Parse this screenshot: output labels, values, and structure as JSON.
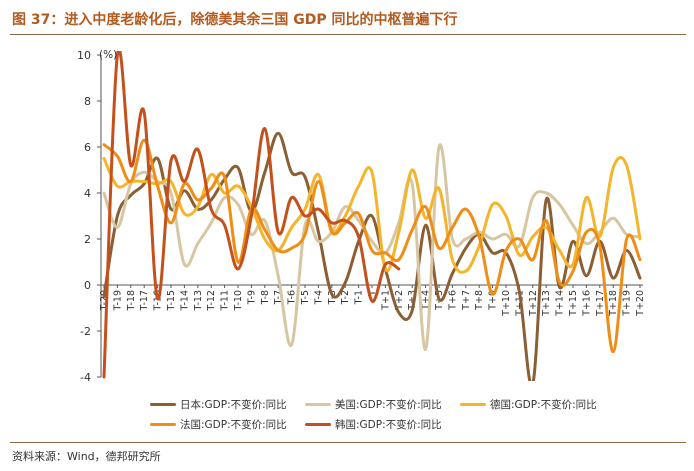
{
  "figure": {
    "title": "图 37：进入中度老龄化后，除德美其余三国 GDP 同比的中枢普遍下行",
    "source": "资料来源：Wind，德邦研究所"
  },
  "chart_data": {
    "type": "line",
    "ylabel": "(%)",
    "ylim": [
      -4,
      10
    ],
    "yticks": [
      -4,
      -2,
      0,
      2,
      4,
      6,
      8,
      10
    ],
    "grid": false,
    "legend_position": "bottom",
    "categories": [
      "T-20",
      "T-19",
      "T-18",
      "T-17",
      "T-16",
      "T-15",
      "T-14",
      "T-13",
      "T-12",
      "T-11",
      "T-10",
      "T-9",
      "T-8",
      "T-7",
      "T-6",
      "T-5",
      "T-4",
      "T-3",
      "T-2",
      "T-1",
      "T",
      "T+1",
      "T+2",
      "T+3",
      "T+4",
      "T+5",
      "T+6",
      "T+7",
      "T+8",
      "T+9",
      "T+10",
      "T+11",
      "T+12",
      "T+13",
      "T+14",
      "T+15",
      "T+16",
      "T+17",
      "T+18",
      "T+19",
      "T+20"
    ],
    "series": [
      {
        "name": "日本:GDP:不变价:同比",
        "color": "#8b5e34",
        "values": [
          -0.5,
          3.0,
          3.9,
          4.4,
          5.5,
          3.3,
          4.1,
          3.3,
          3.7,
          4.6,
          5.1,
          3.2,
          4.9,
          6.6,
          4.9,
          4.7,
          2.3,
          -0.4,
          0.1,
          1.9,
          3.0,
          0.7,
          -1.2,
          -1.1,
          2.6,
          -0.6,
          0.5,
          1.6,
          2.2,
          1.4,
          1.4,
          -0.3,
          -4.3,
          3.7,
          -0.1,
          1.9,
          0.4,
          1.9,
          0.3,
          1.5,
          0.3
        ]
      },
      {
        "name": "美国:GDP:不变价:同比",
        "color": "#d8c6a3",
        "values": [
          4.0,
          2.5,
          4.4,
          4.9,
          4.5,
          4.0,
          0.9,
          1.8,
          2.7,
          3.8,
          3.5,
          2.2,
          2.8,
          0.4,
          -2.6,
          2.6,
          1.9,
          2.3,
          3.4,
          2.8,
          1.9,
          1.4,
          2.7,
          4.4,
          -2.8,
          6.0,
          2.0,
          2.0,
          2.3,
          2.0,
          2.2,
          1.7,
          3.8,
          4.0,
          3.5,
          2.6,
          1.8,
          2.3,
          2.9,
          2.2,
          2.1
        ]
      },
      {
        "name": "德国:GDP:不变价:同比",
        "color": "#f4b52c",
        "values": [
          5.5,
          4.3,
          4.5,
          4.5,
          4.4,
          4.5,
          3.1,
          3.4,
          4.8,
          4.0,
          4.3,
          3.4,
          2.0,
          1.5,
          2.5,
          3.3,
          4.8,
          2.4,
          3.0,
          4.3,
          4.9,
          0.7,
          2.3,
          5.0,
          2.9,
          4.2,
          1.1,
          0.6,
          1.7,
          3.5,
          3.0,
          1.3,
          2.1,
          2.5,
          1.5,
          0.9,
          3.8,
          2.1,
          5.1,
          5.2,
          2.0
        ]
      },
      {
        "name": "法国:GDP:不变价:同比",
        "color": "#ef8d16",
        "values": [
          6.1,
          5.6,
          4.5,
          6.3,
          4.3,
          2.7,
          4.4,
          3.7,
          4.2,
          4.7,
          1.0,
          3.3,
          2.4,
          1.5,
          1.6,
          2.2,
          4.5,
          2.3,
          2.7,
          3.1,
          1.5,
          1.4,
          1.1,
          2.4,
          3.4,
          1.6,
          2.5,
          3.3,
          2.1,
          -0.4,
          1.5,
          2.0,
          1.1,
          2.8,
          0.1,
          0.6,
          2.3,
          1.7,
          -2.9,
          2.0,
          1.1
        ]
      },
      {
        "name": "韩国:GDP:不变价:同比",
        "color": "#c4501c",
        "values": [
          -4.0,
          10.0,
          5.2,
          7.5,
          -0.6,
          5.4,
          4.5,
          5.9,
          3.3,
          2.6,
          0.7,
          3.0,
          6.8,
          2.3,
          3.8,
          3.0,
          3.3,
          2.7,
          2.8,
          2.1,
          -0.7,
          0.9,
          0.7,
          null,
          null,
          null,
          null,
          null,
          null,
          null,
          null,
          null,
          null,
          null,
          null,
          null,
          null,
          null,
          null,
          null,
          null
        ]
      }
    ]
  }
}
